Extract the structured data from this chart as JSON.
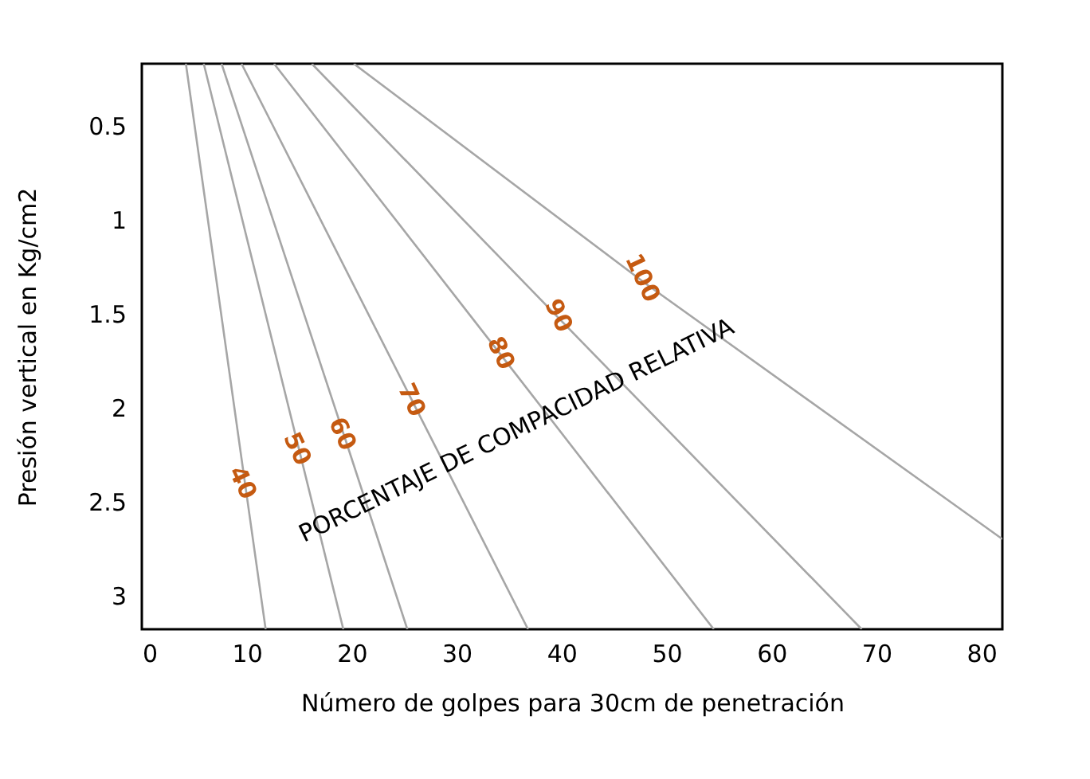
{
  "chart_data": {
    "type": "line",
    "xlabel": "Número de golpes para 30cm de penetración",
    "ylabel": "Presión vertical en Kg/cm2",
    "annotations": [
      "PORCENTAJE DE COMPACIDAD RELATIVA"
    ],
    "xlim": [
      0,
      82
    ],
    "xticks": [
      0,
      10,
      20,
      30,
      40,
      50,
      60,
      70,
      80
    ],
    "ylim": [
      3.18,
      0.17
    ],
    "yticks": [
      0.5,
      1,
      1.5,
      2,
      2.5,
      3
    ],
    "tick_labels": true,
    "grid": false,
    "marker": "none",
    "line_style": "solid",
    "series": [
      {
        "name": "40",
        "color": "#a6a6a6",
        "x": [
          4.2,
          9.9,
          11.8
        ],
        "values": [
          0.17,
          2.43,
          3.18
        ]
      },
      {
        "name": "50",
        "color": "#a6a6a6",
        "x": [
          5.9,
          15.1,
          19.2
        ],
        "values": [
          0.17,
          2.25,
          3.18
        ]
      },
      {
        "name": "60",
        "color": "#a6a6a6",
        "x": [
          7.6,
          19.4,
          25.3
        ],
        "values": [
          0.17,
          2.17,
          3.18
        ]
      },
      {
        "name": "70",
        "color": "#a6a6a6",
        "x": [
          9.5,
          26.0,
          36.8
        ],
        "values": [
          0.17,
          1.99,
          3.18
        ]
      },
      {
        "name": "80",
        "color": "#a6a6a6",
        "x": [
          12.6,
          34.5,
          54.5
        ],
        "values": [
          0.17,
          1.74,
          3.18
        ]
      },
      {
        "name": "90",
        "color": "#a6a6a6",
        "x": [
          16.2,
          40.0,
          68.6
        ],
        "values": [
          0.17,
          1.54,
          3.18
        ]
      },
      {
        "name": "100",
        "color": "#a6a6a6",
        "x": [
          20.2,
          48.0,
          82
        ],
        "values": [
          0.17,
          1.34,
          2.7
        ]
      }
    ]
  }
}
